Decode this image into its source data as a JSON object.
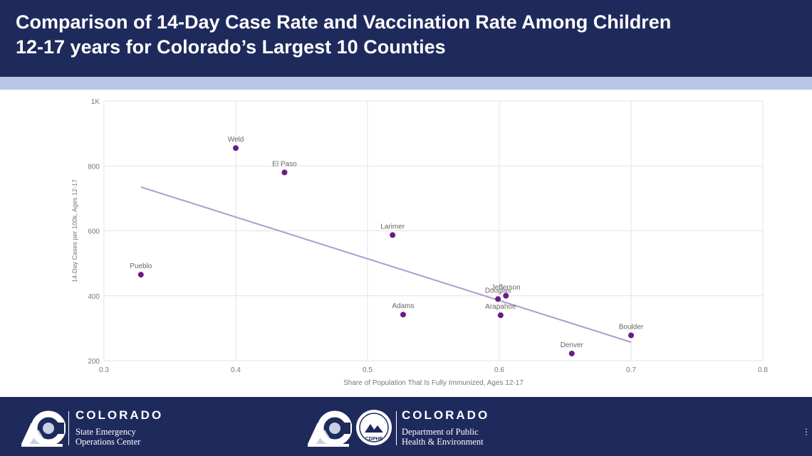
{
  "header": {
    "title_line1": "Comparison of 14-Day Case Rate and Vaccination Rate Among Children",
    "title_line2": "12-17 years for Colorado’s Largest 10 Counties"
  },
  "chart_data": {
    "type": "scatter",
    "xlabel": "Share of Population That Is Fully Immunized, Ages 12-17",
    "ylabel": "14-Day Cases per 100k, Ages 12-17",
    "xlim": [
      0.3,
      0.8
    ],
    "ylim": [
      200,
      1000
    ],
    "x_ticks": [
      0.3,
      0.4,
      0.5,
      0.6,
      0.7,
      0.8
    ],
    "x_tick_labels": [
      "0.3",
      "0.4",
      "0.5",
      "0.6",
      "0.7",
      "0.8"
    ],
    "y_ticks": [
      200,
      400,
      600,
      800,
      1000
    ],
    "y_tick_labels": [
      "200",
      "400",
      "600",
      "800",
      "1K"
    ],
    "grid": true,
    "point_color": "#6a1b8a",
    "trendline_color": "#b39ad1",
    "points": [
      {
        "label": "Weld",
        "x": 0.4,
        "y": 855
      },
      {
        "label": "El Paso",
        "x": 0.437,
        "y": 780
      },
      {
        "label": "Larimer",
        "x": 0.519,
        "y": 587
      },
      {
        "label": "Pueblo",
        "x": 0.328,
        "y": 465
      },
      {
        "label": "Adams",
        "x": 0.527,
        "y": 342
      },
      {
        "label": "Jefferson",
        "x": 0.605,
        "y": 400
      },
      {
        "label": "Douglas",
        "x": 0.599,
        "y": 390
      },
      {
        "label": "Arapahoe",
        "x": 0.601,
        "y": 340
      },
      {
        "label": "Boulder",
        "x": 0.7,
        "y": 278
      },
      {
        "label": "Denver",
        "x": 0.655,
        "y": 222
      }
    ],
    "trendline": {
      "x": [
        0.328,
        0.7
      ],
      "y": [
        735,
        257
      ]
    }
  },
  "footer": {
    "left_org": {
      "name": "COLORADO",
      "sub_line1": "State Emergency",
      "sub_line2": "Operations Center"
    },
    "right_org": {
      "name": "COLORADO",
      "sub_line1": "Department of Public",
      "sub_line2": "Health & Environment",
      "seal_text": "CDPHE"
    }
  }
}
